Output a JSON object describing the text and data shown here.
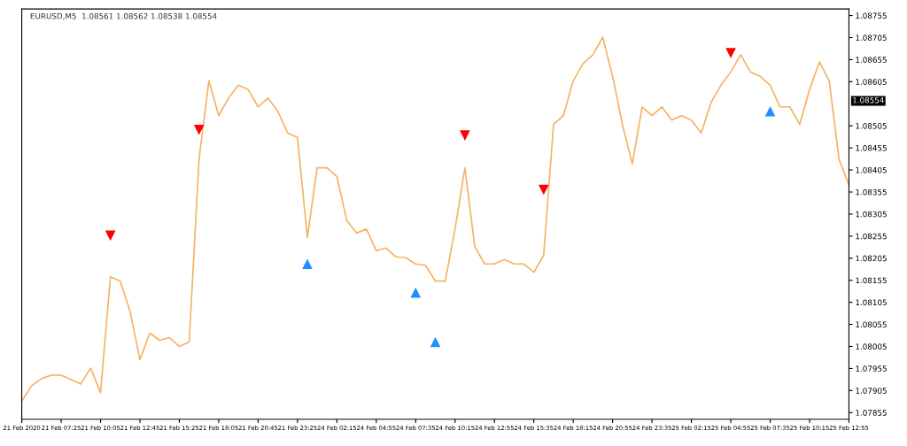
{
  "chart_data": {
    "type": "line",
    "title": "EURUSD,M5  1.08561 1.08562 1.08538 1.08554",
    "categories": [
      "21 Feb 2020",
      null,
      null,
      null,
      "21 Feb 07:25",
      null,
      null,
      null,
      "21 Feb 10:05",
      null,
      null,
      null,
      "21 Feb 12:45",
      null,
      null,
      null,
      "21 Feb 15:25",
      null,
      null,
      null,
      "21 Feb 18:05",
      null,
      null,
      null,
      "21 Feb 20:45",
      null,
      null,
      null,
      "21 Feb 23:25",
      null,
      null,
      null,
      "24 Feb 02:15",
      null,
      null,
      null,
      "24 Feb 04:55",
      null,
      null,
      null,
      "24 Feb 07:35",
      null,
      null,
      null,
      "24 Feb 10:15",
      null,
      null,
      null,
      "24 Feb 12:55",
      null,
      null,
      null,
      "24 Feb 15:35",
      null,
      null,
      null,
      "24 Feb 18:15",
      null,
      null,
      null,
      "24 Feb 20:55",
      null,
      null,
      null,
      "24 Feb 23:35",
      null,
      null,
      null,
      "25 Feb 02:15",
      null,
      null,
      null,
      "25 Feb 04:55",
      null,
      null,
      null,
      "25 Feb 07:35",
      null,
      null,
      null,
      "25 Feb 10:15",
      null,
      null,
      null,
      "25 Feb 12:55"
    ],
    "ylim": [
      1.0784,
      1.0877
    ],
    "yticks": [
      1.07855,
      1.07905,
      1.07955,
      1.08005,
      1.08055,
      1.08105,
      1.08155,
      1.08205,
      1.08255,
      1.08305,
      1.08355,
      1.08405,
      1.08455,
      1.08505,
      1.08605,
      1.08655,
      1.08705,
      1.08755
    ],
    "grid": false,
    "legend": false,
    "annotations": [
      "1.08554"
    ],
    "series": [
      {
        "type": "line",
        "color": "#f5b263",
        "marker": "none",
        "line_style": "solid",
        "values": [
          1.07881,
          1.07916,
          1.07932,
          1.0794,
          1.0794,
          1.0793,
          1.0792,
          1.07956,
          1.079,
          1.08163,
          1.08153,
          1.08084,
          1.07975,
          1.08035,
          1.08019,
          1.08025,
          1.08005,
          1.08015,
          1.08429,
          1.08607,
          1.08528,
          1.08568,
          1.08597,
          1.08587,
          1.08548,
          1.08568,
          1.08538,
          1.08489,
          1.08479,
          1.08252,
          1.0841,
          1.0841,
          1.0839,
          1.08291,
          1.08262,
          1.08271,
          1.08222,
          1.08228,
          1.08208,
          1.08206,
          1.08192,
          1.08189,
          1.08153,
          1.08153,
          1.08271,
          1.0841,
          1.08232,
          1.08192,
          1.08192,
          1.08202,
          1.08192,
          1.08192,
          1.08173,
          1.08212,
          1.08508,
          1.08528,
          1.08607,
          1.08646,
          1.08666,
          1.08706,
          1.08617,
          1.08508,
          1.08419,
          1.08548,
          1.08528,
          1.08548,
          1.08518,
          1.08528,
          1.08518,
          1.08489,
          1.08558,
          1.08597,
          1.08627,
          1.08666,
          1.08627,
          1.08617,
          1.08597,
          1.08548,
          1.08548,
          1.08508,
          1.08587,
          1.0865,
          1.08607,
          1.08429,
          1.0837
        ]
      },
      {
        "type": "scatter",
        "color": "#ff0000",
        "marker": "triangle",
        "values": [
          null,
          null,
          null,
          null,
          null,
          null,
          null,
          null,
          null,
          1.08256,
          null,
          null,
          null,
          null,
          null,
          null,
          null,
          null,
          1.08496,
          null,
          null,
          null,
          null,
          null,
          null,
          null,
          null,
          null,
          null,
          null,
          null,
          null,
          null,
          null,
          null,
          null,
          null,
          null,
          null,
          null,
          null,
          null,
          null,
          null,
          null,
          1.08483,
          null,
          null,
          null,
          null,
          null,
          null,
          null,
          1.0836,
          null,
          null,
          null,
          null,
          null,
          null,
          null,
          null,
          null,
          null,
          null,
          null,
          null,
          null,
          null,
          null,
          null,
          null,
          1.0867,
          null,
          null,
          null,
          null,
          null,
          null,
          null,
          null,
          null,
          null,
          null,
          null
        ]
      },
      {
        "type": "scatter",
        "color": "#1e90ff",
        "marker": "triangle",
        "values": [
          null,
          null,
          null,
          null,
          null,
          null,
          null,
          null,
          null,
          null,
          null,
          null,
          null,
          null,
          null,
          null,
          null,
          null,
          null,
          null,
          null,
          null,
          null,
          null,
          null,
          null,
          null,
          null,
          null,
          1.08192,
          null,
          null,
          null,
          null,
          null,
          null,
          null,
          null,
          null,
          null,
          1.08127,
          null,
          1.08015,
          null,
          null,
          null,
          null,
          null,
          null,
          null,
          null,
          null,
          null,
          null,
          null,
          null,
          null,
          null,
          null,
          null,
          null,
          null,
          null,
          null,
          null,
          null,
          null,
          null,
          null,
          null,
          null,
          null,
          null,
          null,
          null,
          null,
          1.08538,
          null,
          null,
          null,
          null,
          null,
          null,
          null,
          null
        ]
      }
    ]
  }
}
